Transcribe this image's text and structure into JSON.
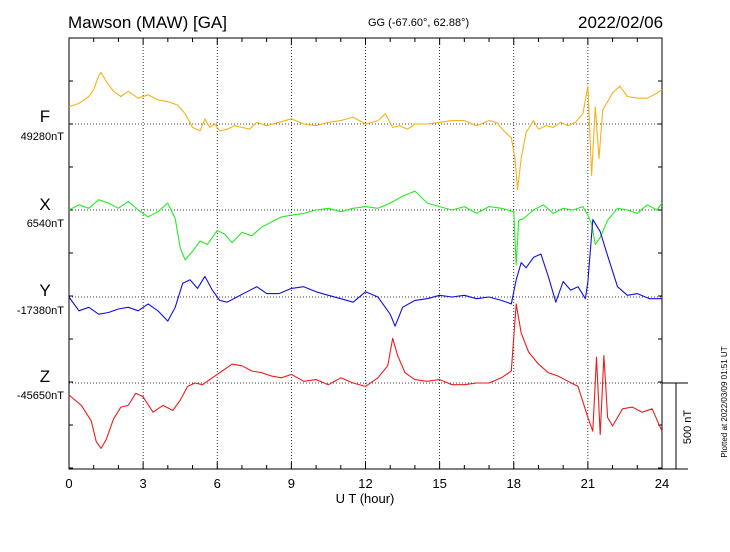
{
  "header": {
    "station": "Mawson (MAW)  [GA]",
    "coords": "GG (-67.60°,  62.88°)",
    "date": "2022/02/06"
  },
  "footer": {
    "plotted": "Plotted at 2022/03/09 01:51  UT"
  },
  "chart_data": {
    "type": "line",
    "title": "Mawson (MAW)  [GA]",
    "xlabel": "U T (hour)",
    "xlim": [
      0,
      24
    ],
    "xticks": [
      0,
      3,
      6,
      9,
      12,
      15,
      18,
      21,
      24
    ],
    "xtick_labels": [
      "0",
      "3",
      "6",
      "9",
      "12",
      "15",
      "18",
      "21",
      "24"
    ],
    "grid": true,
    "scale_bar": {
      "label": "500 nT",
      "nT": 500
    },
    "series": [
      {
        "name": "F",
        "baseline_label": "49280nT",
        "baseline_nT": 49280,
        "color": "#f5b21a",
        "x": [
          0,
          0.4,
          0.8,
          1.0,
          1.2,
          1.3,
          1.5,
          1.8,
          2.1,
          2.4,
          2.8,
          3.2,
          3.6,
          4.0,
          4.4,
          4.7,
          5.0,
          5.3,
          5.5,
          5.7,
          5.9,
          6.1,
          6.4,
          6.7,
          7.0,
          7.3,
          7.6,
          8.0,
          8.5,
          9.0,
          9.5,
          10.0,
          10.5,
          11.0,
          11.5,
          12.0,
          12.5,
          12.8,
          13.1,
          13.4,
          13.7,
          14.0,
          14.5,
          15.0,
          15.5,
          16.0,
          16.5,
          17.0,
          17.3,
          17.6,
          17.9,
          18.05,
          18.15,
          18.3,
          18.5,
          18.8,
          19.0,
          19.3,
          19.6,
          19.9,
          20.2,
          20.5,
          20.8,
          21.0,
          21.15,
          21.3,
          21.45,
          21.6,
          21.8,
          22.0,
          22.3,
          22.6,
          23.0,
          23.4,
          23.8,
          24.0
        ],
        "values": [
          100,
          120,
          160,
          200,
          280,
          300,
          250,
          190,
          160,
          190,
          150,
          170,
          140,
          130,
          110,
          60,
          -20,
          -40,
          30,
          -20,
          0,
          -40,
          -30,
          -10,
          -20,
          -30,
          10,
          -10,
          10,
          30,
          0,
          -10,
          10,
          20,
          40,
          0,
          20,
          60,
          -20,
          -10,
          -30,
          0,
          0,
          10,
          20,
          20,
          -10,
          20,
          10,
          -40,
          -80,
          -200,
          -380,
          -200,
          -50,
          20,
          -30,
          -10,
          -20,
          10,
          -10,
          10,
          60,
          220,
          -300,
          100,
          -200,
          80,
          130,
          180,
          220,
          160,
          150,
          150,
          180,
          200
        ]
      },
      {
        "name": "X",
        "baseline_label": "6540nT",
        "baseline_nT": 6540,
        "color": "#22ee22",
        "x": [
          0,
          0.4,
          0.8,
          1.2,
          1.6,
          2.0,
          2.4,
          2.8,
          3.2,
          3.6,
          4.0,
          4.3,
          4.5,
          4.7,
          5.0,
          5.3,
          5.6,
          6.0,
          6.3,
          6.6,
          7.0,
          7.4,
          7.8,
          8.2,
          8.6,
          9.0,
          9.5,
          10.0,
          10.5,
          11.0,
          11.5,
          12.0,
          12.5,
          13.0,
          13.5,
          14.0,
          14.5,
          15.0,
          15.5,
          16.0,
          16.5,
          17.0,
          17.5,
          18.0,
          18.1,
          18.2,
          18.4,
          18.8,
          19.2,
          19.6,
          20.0,
          20.4,
          20.8,
          21.0,
          21.15,
          21.3,
          21.5,
          21.8,
          22.2,
          22.6,
          23.0,
          23.4,
          23.8,
          24.0
        ],
        "values": [
          0,
          30,
          10,
          60,
          40,
          10,
          50,
          0,
          -40,
          -10,
          40,
          -50,
          -220,
          -290,
          -240,
          -180,
          -200,
          -120,
          -140,
          -190,
          -130,
          -150,
          -100,
          -70,
          -40,
          -30,
          -20,
          0,
          10,
          -10,
          10,
          20,
          10,
          40,
          80,
          110,
          40,
          20,
          0,
          20,
          -20,
          20,
          10,
          -10,
          -320,
          -60,
          -50,
          0,
          30,
          -20,
          10,
          0,
          20,
          -30,
          -80,
          -200,
          -160,
          -60,
          10,
          0,
          -20,
          30,
          0,
          40
        ]
      },
      {
        "name": "Y",
        "baseline_label": "-17380nT",
        "baseline_nT": -17380,
        "color": "#1010e0",
        "x": [
          0,
          0.4,
          0.8,
          1.2,
          1.6,
          2.0,
          2.4,
          2.8,
          3.2,
          3.6,
          4.0,
          4.3,
          4.6,
          4.9,
          5.2,
          5.5,
          5.8,
          6.1,
          6.4,
          6.8,
          7.2,
          7.6,
          8.0,
          8.5,
          9.0,
          9.5,
          10.0,
          10.5,
          11.0,
          11.5,
          12.0,
          12.5,
          13.0,
          13.2,
          13.5,
          14.0,
          14.5,
          15.0,
          15.5,
          16.0,
          16.5,
          17.0,
          17.5,
          17.9,
          18.1,
          18.3,
          18.5,
          18.8,
          19.1,
          19.4,
          19.7,
          20.0,
          20.3,
          20.6,
          20.9,
          21.0,
          21.2,
          21.5,
          21.8,
          22.2,
          22.6,
          23.0,
          23.5,
          24.0
        ],
        "values": [
          0,
          -80,
          -60,
          -100,
          -90,
          -70,
          -60,
          -80,
          -40,
          -80,
          -140,
          -60,
          80,
          100,
          50,
          120,
          40,
          -20,
          -30,
          0,
          30,
          60,
          20,
          20,
          50,
          60,
          30,
          10,
          -10,
          -30,
          30,
          0,
          -100,
          -170,
          -60,
          -20,
          -10,
          10,
          0,
          10,
          -10,
          0,
          -20,
          -40,
          100,
          200,
          170,
          230,
          250,
          120,
          -30,
          90,
          40,
          60,
          -10,
          90,
          450,
          380,
          240,
          60,
          10,
          20,
          -10,
          -10
        ]
      },
      {
        "name": "Z",
        "baseline_label": "-45650nT",
        "baseline_nT": -45650,
        "color": "#ee1c1c",
        "x": [
          0,
          0.5,
          0.9,
          1.1,
          1.3,
          1.5,
          1.8,
          2.1,
          2.4,
          2.7,
          3.0,
          3.4,
          3.8,
          4.2,
          4.5,
          4.8,
          5.1,
          5.4,
          5.8,
          6.2,
          6.6,
          7.0,
          7.4,
          7.8,
          8.2,
          8.6,
          9.0,
          9.5,
          10.0,
          10.5,
          11.0,
          11.5,
          12.0,
          12.5,
          12.9,
          13.1,
          13.3,
          13.6,
          14.0,
          14.5,
          15.0,
          15.5,
          16.0,
          16.5,
          17.0,
          17.5,
          17.9,
          18.1,
          18.3,
          18.6,
          19.0,
          19.4,
          19.8,
          20.2,
          20.6,
          21.0,
          21.2,
          21.35,
          21.5,
          21.65,
          21.8,
          22.0,
          22.4,
          22.8,
          23.2,
          23.6,
          24.0
        ],
        "values": [
          -70,
          -130,
          -220,
          -340,
          -380,
          -330,
          -210,
          -140,
          -130,
          -60,
          -80,
          -170,
          -130,
          -160,
          -100,
          -20,
          0,
          -10,
          30,
          70,
          110,
          100,
          70,
          60,
          40,
          30,
          50,
          10,
          20,
          -10,
          30,
          0,
          -20,
          30,
          100,
          260,
          160,
          60,
          20,
          10,
          20,
          -10,
          -10,
          0,
          0,
          30,
          70,
          460,
          290,
          180,
          110,
          60,
          40,
          10,
          -20,
          -200,
          -280,
          150,
          -300,
          160,
          -200,
          -250,
          -150,
          -140,
          -170,
          -150,
          -280
        ]
      }
    ]
  }
}
